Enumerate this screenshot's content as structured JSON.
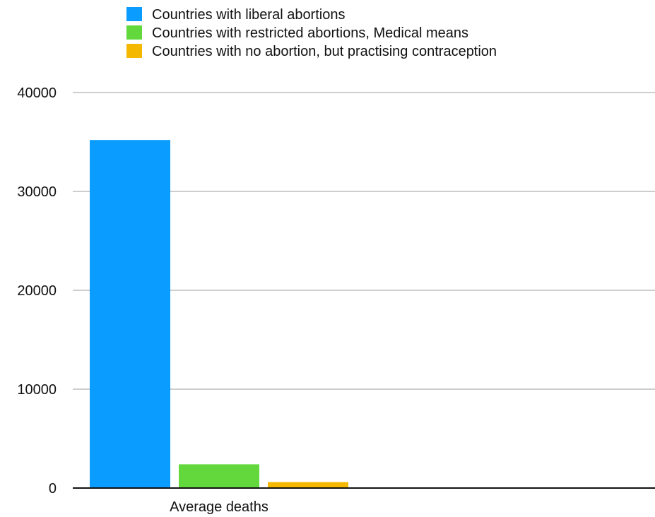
{
  "chart_data": {
    "type": "bar",
    "categories": [
      "Average deaths"
    ],
    "series": [
      {
        "name": "Countries with liberal abortions",
        "color": "#0a9cff",
        "values": [
          35200
        ]
      },
      {
        "name": "Countries with restricted abortions, Medical means",
        "color": "#62d83c",
        "values": [
          2400
        ]
      },
      {
        "name": "Countries with no abortion, but practising contraception",
        "color": "#f5b800",
        "values": [
          600
        ]
      }
    ],
    "ylim": [
      0,
      40000
    ],
    "yticks": [
      0,
      10000,
      20000,
      30000,
      40000
    ],
    "grid": true,
    "legend_position": "top"
  }
}
